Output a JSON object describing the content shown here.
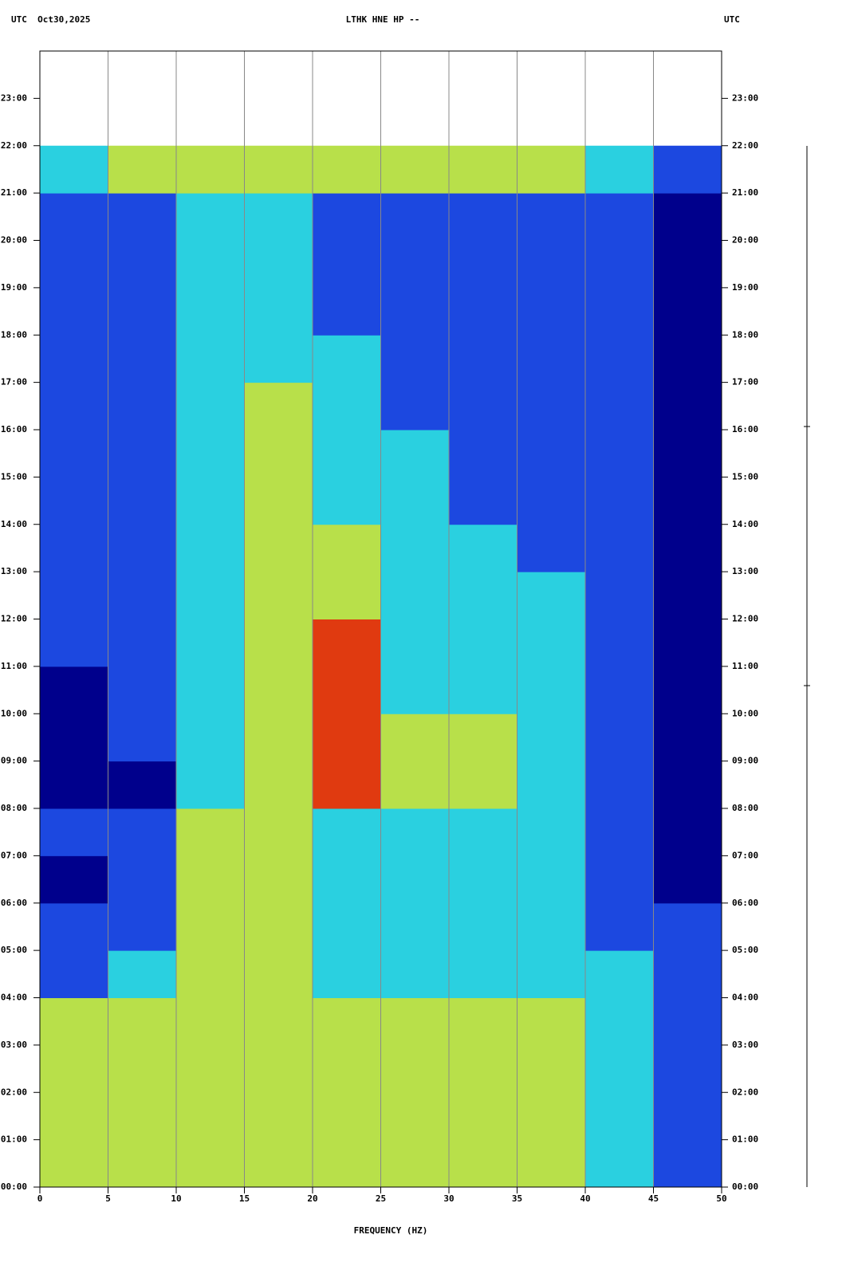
{
  "chart_data": {
    "type": "heatmap",
    "title": "LTHK HNE HP --",
    "left_header": "UTC  Oct30,2025",
    "right_header": "UTC",
    "xlabel": "FREQUENCY (HZ)",
    "xlim": [
      0,
      50
    ],
    "xticks": [
      0,
      5,
      10,
      15,
      20,
      25,
      30,
      35,
      40,
      45,
      50
    ],
    "ylim": [
      0,
      24
    ],
    "yticks": [
      {
        "value": 0,
        "label": "00:00"
      },
      {
        "value": 1,
        "label": "01:00"
      },
      {
        "value": 2,
        "label": "02:00"
      },
      {
        "value": 3,
        "label": "03:00"
      },
      {
        "value": 4,
        "label": "04:00"
      },
      {
        "value": 5,
        "label": "05:00"
      },
      {
        "value": 6,
        "label": "06:00"
      },
      {
        "value": 7,
        "label": "07:00"
      },
      {
        "value": 8,
        "label": "08:00"
      },
      {
        "value": 9,
        "label": "09:00"
      },
      {
        "value": 10,
        "label": "10:00"
      },
      {
        "value": 11,
        "label": "11:00"
      },
      {
        "value": 12,
        "label": "12:00"
      },
      {
        "value": 13,
        "label": "13:00"
      },
      {
        "value": 14,
        "label": "14:00"
      },
      {
        "value": 15,
        "label": "15:00"
      },
      {
        "value": 16,
        "label": "16:00"
      },
      {
        "value": 17,
        "label": "17:00"
      },
      {
        "value": 18,
        "label": "18:00"
      },
      {
        "value": 19,
        "label": "19:00"
      },
      {
        "value": 20,
        "label": "20:00"
      },
      {
        "value": 21,
        "label": "21:00"
      },
      {
        "value": 22,
        "label": "22:00"
      },
      {
        "value": 23,
        "label": "23:00"
      }
    ],
    "grid": true,
    "colorscale": [
      "#00008c",
      "#1c48e0",
      "#2ad0e0",
      "#b8e04a",
      "#e03a10"
    ],
    "x_bins": [
      0,
      5,
      10,
      15,
      20,
      25,
      30,
      35,
      40,
      45,
      50
    ],
    "y_bins": [
      0,
      1,
      2,
      3,
      4,
      5,
      6,
      7,
      8,
      9,
      10,
      11,
      12,
      13,
      14,
      15,
      16,
      17,
      18,
      19,
      20,
      21,
      22
    ],
    "z": [
      [
        3,
        3,
        3,
        3,
        3,
        3,
        3,
        3,
        2,
        1
      ],
      [
        3,
        3,
        3,
        3,
        3,
        3,
        3,
        3,
        2,
        1
      ],
      [
        3,
        3,
        3,
        3,
        3,
        3,
        3,
        3,
        2,
        1
      ],
      [
        3,
        3,
        3,
        3,
        3,
        3,
        3,
        3,
        2,
        1
      ],
      [
        1,
        2,
        3,
        3,
        2,
        2,
        2,
        2,
        2,
        1
      ],
      [
        1,
        1,
        3,
        3,
        2,
        2,
        2,
        2,
        1,
        1
      ],
      [
        0,
        1,
        3,
        3,
        2,
        2,
        2,
        2,
        1,
        0
      ],
      [
        1,
        1,
        3,
        3,
        2,
        2,
        2,
        2,
        1,
        0
      ],
      [
        0,
        0,
        2,
        3,
        4,
        3,
        3,
        2,
        1,
        0
      ],
      [
        0,
        1,
        2,
        3,
        4,
        3,
        3,
        2,
        1,
        0
      ],
      [
        0,
        1,
        2,
        3,
        4,
        2,
        2,
        2,
        1,
        0
      ],
      [
        1,
        1,
        2,
        3,
        4,
        2,
        2,
        2,
        1,
        0
      ],
      [
        1,
        1,
        2,
        3,
        3,
        2,
        2,
        2,
        1,
        0
      ],
      [
        1,
        1,
        2,
        3,
        3,
        2,
        2,
        1,
        1,
        0
      ],
      [
        1,
        1,
        2,
        3,
        2,
        2,
        1,
        1,
        1,
        0
      ],
      [
        1,
        1,
        2,
        3,
        2,
        2,
        1,
        1,
        1,
        0
      ],
      [
        1,
        1,
        2,
        3,
        2,
        1,
        1,
        1,
        1,
        0
      ],
      [
        1,
        1,
        2,
        2,
        2,
        1,
        1,
        1,
        1,
        0
      ],
      [
        1,
        1,
        2,
        2,
        1,
        1,
        1,
        1,
        1,
        0
      ],
      [
        1,
        1,
        2,
        2,
        1,
        1,
        1,
        1,
        1,
        0
      ],
      [
        1,
        1,
        2,
        2,
        1,
        1,
        1,
        1,
        1,
        0
      ],
      [
        2,
        3,
        3,
        3,
        3,
        3,
        3,
        3,
        2,
        1
      ]
    ]
  }
}
